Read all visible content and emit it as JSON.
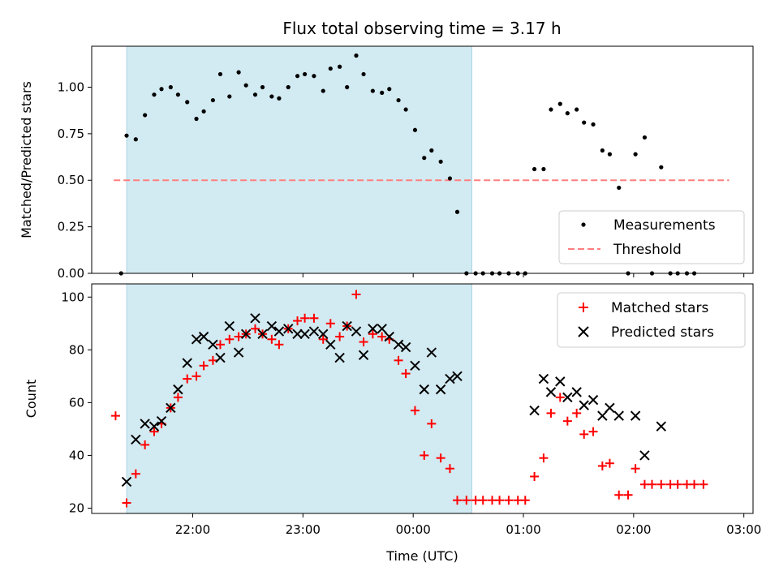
{
  "chart_data": [
    {
      "type": "scatter",
      "title": "Flux total observing time = 3.17 h",
      "ylabel": "Matched/Predicted stars",
      "xlabel": "",
      "xlim": [
        "21:05",
        "03:05"
      ],
      "ylim": [
        0,
        1.22
      ],
      "yticks": [
        "0.00",
        "0.25",
        "0.50",
        "0.75",
        "1.00"
      ],
      "x_tick_values": [
        "22:00",
        "23:00",
        "00:00",
        "01:00",
        "02:00",
        "03:00"
      ],
      "shaded_span": [
        "21:24",
        "00:32"
      ],
      "shaded_color": "#add8e6",
      "threshold": {
        "name": "Threshold",
        "y": 0.5,
        "x_range": [
          "21:17",
          "02:52"
        ],
        "color": "#ff7f7f",
        "style": "dashed"
      },
      "legend_position": "lower-right",
      "series": [
        {
          "name": "Measurements",
          "color": "#000000",
          "marker": "dot",
          "points": [
            [
              "21:21",
              0.0
            ],
            [
              "21:24",
              0.74
            ],
            [
              "21:29",
              0.72
            ],
            [
              "21:34",
              0.85
            ],
            [
              "21:39",
              0.96
            ],
            [
              "21:43",
              0.99
            ],
            [
              "21:48",
              1.0
            ],
            [
              "21:52",
              0.96
            ],
            [
              "21:57",
              0.92
            ],
            [
              "22:02",
              0.83
            ],
            [
              "22:06",
              0.87
            ],
            [
              "22:11",
              0.93
            ],
            [
              "22:15",
              1.07
            ],
            [
              "22:20",
              0.95
            ],
            [
              "22:25",
              1.08
            ],
            [
              "22:29",
              1.01
            ],
            [
              "22:34",
              0.96
            ],
            [
              "22:38",
              1.0
            ],
            [
              "22:43",
              0.95
            ],
            [
              "22:47",
              0.94
            ],
            [
              "22:52",
              1.0
            ],
            [
              "22:57",
              1.06
            ],
            [
              "23:01",
              1.07
            ],
            [
              "23:06",
              1.06
            ],
            [
              "23:11",
              0.98
            ],
            [
              "23:15",
              1.1
            ],
            [
              "23:20",
              1.11
            ],
            [
              "23:24",
              1.0
            ],
            [
              "23:29",
              1.17
            ],
            [
              "23:33",
              1.07
            ],
            [
              "23:38",
              0.98
            ],
            [
              "23:43",
              0.97
            ],
            [
              "23:47",
              0.99
            ],
            [
              "23:52",
              0.93
            ],
            [
              "23:56",
              0.88
            ],
            [
              "00:01",
              0.77
            ],
            [
              "00:06",
              0.62
            ],
            [
              "00:10",
              0.66
            ],
            [
              "00:15",
              0.6
            ],
            [
              "00:20",
              0.51
            ],
            [
              "00:24",
              0.33
            ],
            [
              "00:29",
              0.0
            ],
            [
              "00:34",
              0.0
            ],
            [
              "00:38",
              0.0
            ],
            [
              "00:43",
              0.0
            ],
            [
              "00:47",
              0.0
            ],
            [
              "00:52",
              0.0
            ],
            [
              "00:57",
              0.0
            ],
            [
              "01:01",
              0.0
            ],
            [
              "01:06",
              0.56
            ],
            [
              "01:11",
              0.56
            ],
            [
              "01:15",
              0.88
            ],
            [
              "01:20",
              0.91
            ],
            [
              "01:24",
              0.86
            ],
            [
              "01:29",
              0.88
            ],
            [
              "01:33",
              0.81
            ],
            [
              "01:38",
              0.8
            ],
            [
              "01:43",
              0.66
            ],
            [
              "01:47",
              0.64
            ],
            [
              "01:52",
              0.46
            ],
            [
              "01:57",
              0.0
            ],
            [
              "02:01",
              0.64
            ],
            [
              "02:06",
              0.73
            ],
            [
              "02:10",
              0.0
            ],
            [
              "02:15",
              0.57
            ],
            [
              "02:20",
              0.0
            ],
            [
              "02:24",
              0.0
            ],
            [
              "02:29",
              0.0
            ],
            [
              "02:33",
              0.0
            ]
          ]
        }
      ]
    },
    {
      "type": "scatter",
      "title": "",
      "ylabel": "Count",
      "xlabel": "Time (UTC)",
      "xlim": [
        "21:05",
        "03:05"
      ],
      "ylim": [
        18,
        105
      ],
      "yticks": [
        "20",
        "40",
        "60",
        "80",
        "100"
      ],
      "x_tick_labels": [
        "22:00",
        "23:00",
        "00:00",
        "01:00",
        "02:00",
        "03:00"
      ],
      "shaded_span": [
        "21:24",
        "00:32"
      ],
      "shaded_color": "#add8e6",
      "legend_position": "upper-right",
      "series": [
        {
          "name": "Matched stars",
          "color": "#ff0000",
          "marker": "plus",
          "points": [
            [
              "21:18",
              55
            ],
            [
              "21:24",
              22
            ],
            [
              "21:29",
              33
            ],
            [
              "21:34",
              44
            ],
            [
              "21:39",
              49
            ],
            [
              "21:43",
              52
            ],
            [
              "21:48",
              58
            ],
            [
              "21:52",
              62
            ],
            [
              "21:57",
              69
            ],
            [
              "22:02",
              70
            ],
            [
              "22:06",
              74
            ],
            [
              "22:11",
              76
            ],
            [
              "22:15",
              82
            ],
            [
              "22:20",
              84
            ],
            [
              "22:25",
              85
            ],
            [
              "22:29",
              86
            ],
            [
              "22:34",
              88
            ],
            [
              "22:38",
              86
            ],
            [
              "22:43",
              84
            ],
            [
              "22:47",
              82
            ],
            [
              "22:52",
              88
            ],
            [
              "22:57",
              91
            ],
            [
              "23:01",
              92
            ],
            [
              "23:06",
              92
            ],
            [
              "23:11",
              84
            ],
            [
              "23:15",
              90
            ],
            [
              "23:20",
              85
            ],
            [
              "23:24",
              89
            ],
            [
              "23:29",
              101
            ],
            [
              "23:33",
              83
            ],
            [
              "23:38",
              86
            ],
            [
              "23:43",
              85
            ],
            [
              "23:47",
              84
            ],
            [
              "23:52",
              76
            ],
            [
              "23:56",
              71
            ],
            [
              "00:01",
              57
            ],
            [
              "00:06",
              40
            ],
            [
              "00:10",
              52
            ],
            [
              "00:15",
              39
            ],
            [
              "00:20",
              35
            ],
            [
              "00:24",
              23
            ],
            [
              "00:29",
              23
            ],
            [
              "00:34",
              23
            ],
            [
              "00:38",
              23
            ],
            [
              "00:43",
              23
            ],
            [
              "00:47",
              23
            ],
            [
              "00:52",
              23
            ],
            [
              "00:57",
              23
            ],
            [
              "01:01",
              23
            ],
            [
              "01:06",
              32
            ],
            [
              "01:11",
              39
            ],
            [
              "01:15",
              56
            ],
            [
              "01:20",
              62
            ],
            [
              "01:24",
              53
            ],
            [
              "01:29",
              56
            ],
            [
              "01:33",
              48
            ],
            [
              "01:38",
              49
            ],
            [
              "01:43",
              36
            ],
            [
              "01:47",
              37
            ],
            [
              "01:52",
              25
            ],
            [
              "01:57",
              25
            ],
            [
              "02:01",
              35
            ],
            [
              "02:06",
              29
            ],
            [
              "02:10",
              29
            ],
            [
              "02:15",
              29
            ],
            [
              "02:20",
              29
            ],
            [
              "02:24",
              29
            ],
            [
              "02:29",
              29
            ],
            [
              "02:33",
              29
            ],
            [
              "02:38",
              29
            ]
          ]
        },
        {
          "name": "Predicted stars",
          "color": "#000000",
          "marker": "x",
          "points": [
            [
              "21:24",
              30
            ],
            [
              "21:29",
              46
            ],
            [
              "21:34",
              52
            ],
            [
              "21:39",
              51
            ],
            [
              "21:43",
              53
            ],
            [
              "21:48",
              58
            ],
            [
              "21:52",
              65
            ],
            [
              "21:57",
              75
            ],
            [
              "22:02",
              84
            ],
            [
              "22:06",
              85
            ],
            [
              "22:11",
              82
            ],
            [
              "22:15",
              77
            ],
            [
              "22:20",
              89
            ],
            [
              "22:25",
              79
            ],
            [
              "22:29",
              86
            ],
            [
              "22:34",
              92
            ],
            [
              "22:38",
              86
            ],
            [
              "22:43",
              89
            ],
            [
              "22:47",
              87
            ],
            [
              "22:52",
              88
            ],
            [
              "22:57",
              86
            ],
            [
              "23:01",
              86
            ],
            [
              "23:06",
              87
            ],
            [
              "23:11",
              86
            ],
            [
              "23:15",
              82
            ],
            [
              "23:20",
              77
            ],
            [
              "23:24",
              89
            ],
            [
              "23:29",
              87
            ],
            [
              "23:33",
              78
            ],
            [
              "23:38",
              88
            ],
            [
              "23:43",
              88
            ],
            [
              "23:47",
              85
            ],
            [
              "23:52",
              82
            ],
            [
              "23:56",
              81
            ],
            [
              "00:01",
              74
            ],
            [
              "00:06",
              65
            ],
            [
              "00:10",
              79
            ],
            [
              "00:15",
              65
            ],
            [
              "00:20",
              69
            ],
            [
              "00:24",
              70
            ],
            [
              "01:06",
              57
            ],
            [
              "01:11",
              69
            ],
            [
              "01:15",
              64
            ],
            [
              "01:20",
              68
            ],
            [
              "01:24",
              62
            ],
            [
              "01:29",
              64
            ],
            [
              "01:33",
              59
            ],
            [
              "01:38",
              61
            ],
            [
              "01:43",
              55
            ],
            [
              "01:47",
              58
            ],
            [
              "01:52",
              55
            ],
            [
              "02:01",
              55
            ],
            [
              "02:06",
              40
            ],
            [
              "02:15",
              51
            ]
          ]
        }
      ]
    }
  ]
}
